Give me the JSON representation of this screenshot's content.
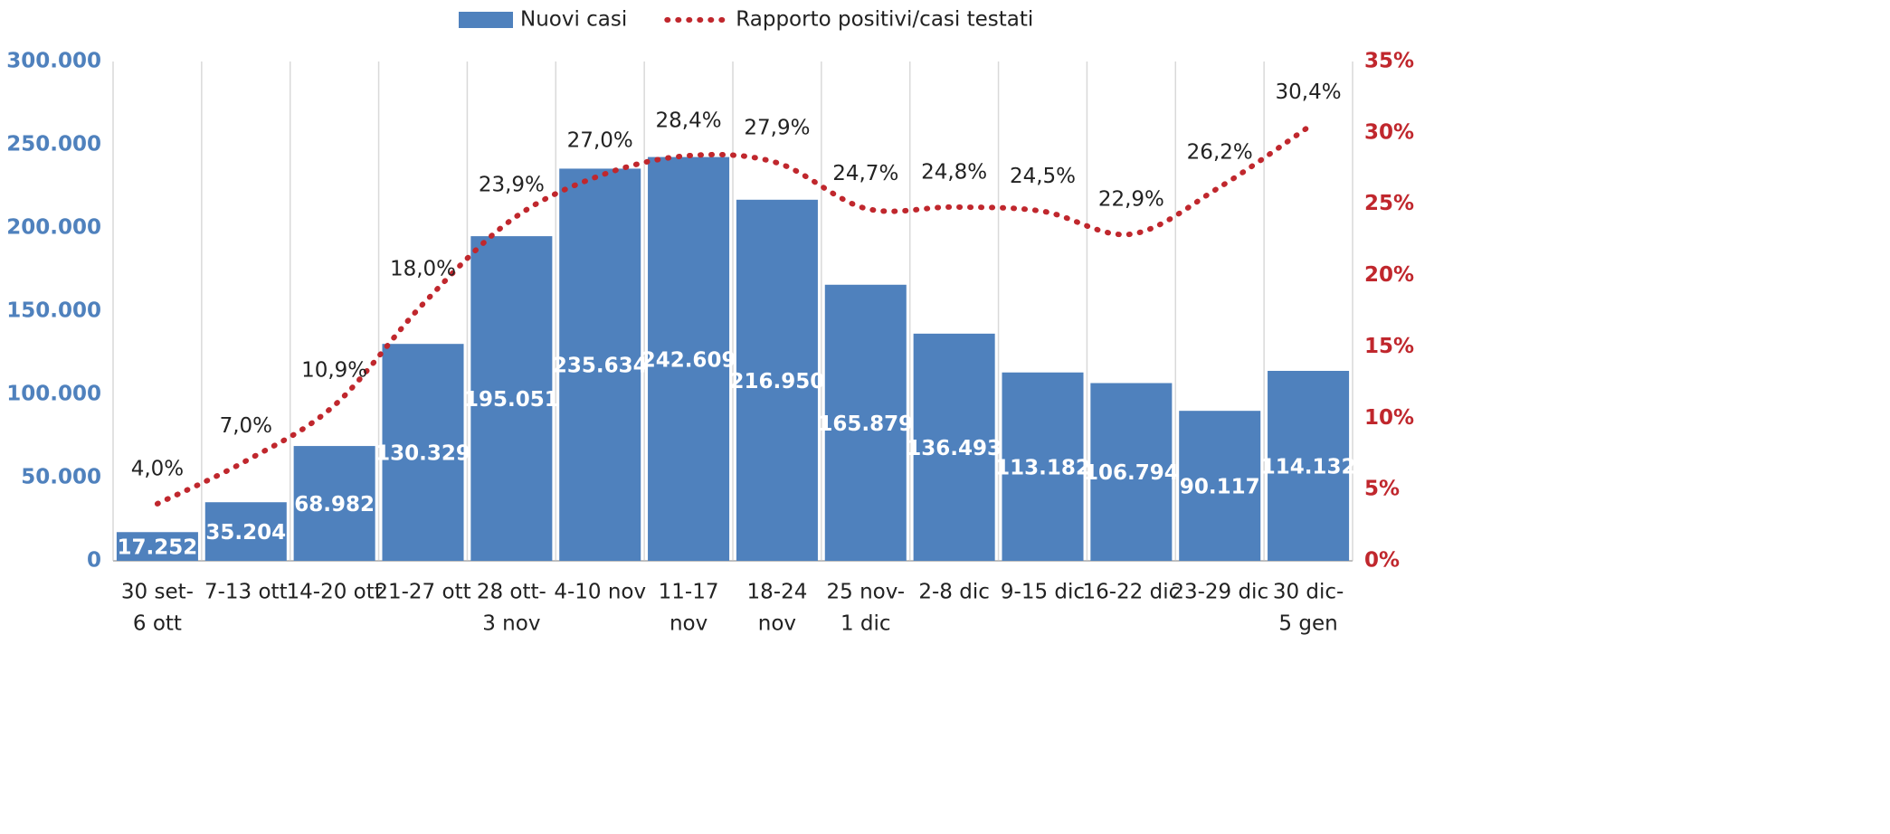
{
  "chart_data": {
    "type": "bar",
    "categories": [
      [
        "30 set-",
        "6 ott"
      ],
      [
        "7-13 ott"
      ],
      [
        "14-20 ott"
      ],
      [
        "21-27 ott"
      ],
      [
        "28 ott-",
        "3 nov"
      ],
      [
        "4-10 nov"
      ],
      [
        "11-17",
        "nov"
      ],
      [
        "18-24",
        "nov"
      ],
      [
        "25 nov-",
        "1 dic"
      ],
      [
        "2-8 dic"
      ],
      [
        "9-15 dic"
      ],
      [
        "16-22 dic"
      ],
      [
        "23-29 dic"
      ],
      [
        "30 dic-",
        "5 gen"
      ]
    ],
    "series": [
      {
        "name": "Nuovi casi",
        "type": "bar",
        "color": "#4f81bd",
        "values": [
          17252,
          35204,
          68982,
          130329,
          195051,
          235634,
          242609,
          216950,
          165879,
          136493,
          113182,
          106794,
          90117,
          114132
        ],
        "value_labels": [
          "17.252",
          "35.204",
          "68.982",
          "130.329",
          "195.051",
          "235.634",
          "242.609",
          "216.950",
          "165.879",
          "136.493",
          "113.182",
          "106.794",
          "90.117",
          "114.132"
        ]
      },
      {
        "name": "Rapporto positivi/casi testati",
        "type": "line",
        "axis": "y2",
        "color": "#c0272d",
        "values": [
          4.0,
          7.0,
          10.9,
          18.0,
          23.9,
          27.0,
          28.4,
          27.9,
          24.7,
          24.8,
          24.5,
          22.9,
          26.2,
          30.4
        ],
        "value_labels": [
          "4,0%",
          "7,0%",
          "10,9%",
          "18,0%",
          "23,9%",
          "27,0%",
          "28,4%",
          "27,9%",
          "24,7%",
          "24,8%",
          "24,5%",
          "22,9%",
          "26,2%",
          "30,4%"
        ]
      }
    ],
    "ylim": [
      0,
      300000
    ],
    "yticks": [
      0,
      {
        "value": 50000,
        "label": "50.000"
      },
      {
        "value": 100000,
        "label": "100.000"
      },
      {
        "value": 150000,
        "label": "150.000"
      },
      {
        "value": 200000,
        "label": "200.000"
      },
      {
        "value": 250000,
        "label": "250.000"
      },
      {
        "value": 300000,
        "label": "300.000"
      }
    ],
    "y2lim": [
      0,
      35
    ],
    "y2ticks": [
      {
        "value": 0,
        "label": "0%"
      },
      {
        "value": 5,
        "label": "5%"
      },
      {
        "value": 10,
        "label": "10%"
      },
      {
        "value": 15,
        "label": "15%"
      },
      {
        "value": 20,
        "label": "20%"
      },
      {
        "value": 25,
        "label": "25%"
      },
      {
        "value": 30,
        "label": "30%"
      },
      {
        "value": 35,
        "label": "35%"
      }
    ],
    "legend": "top"
  }
}
